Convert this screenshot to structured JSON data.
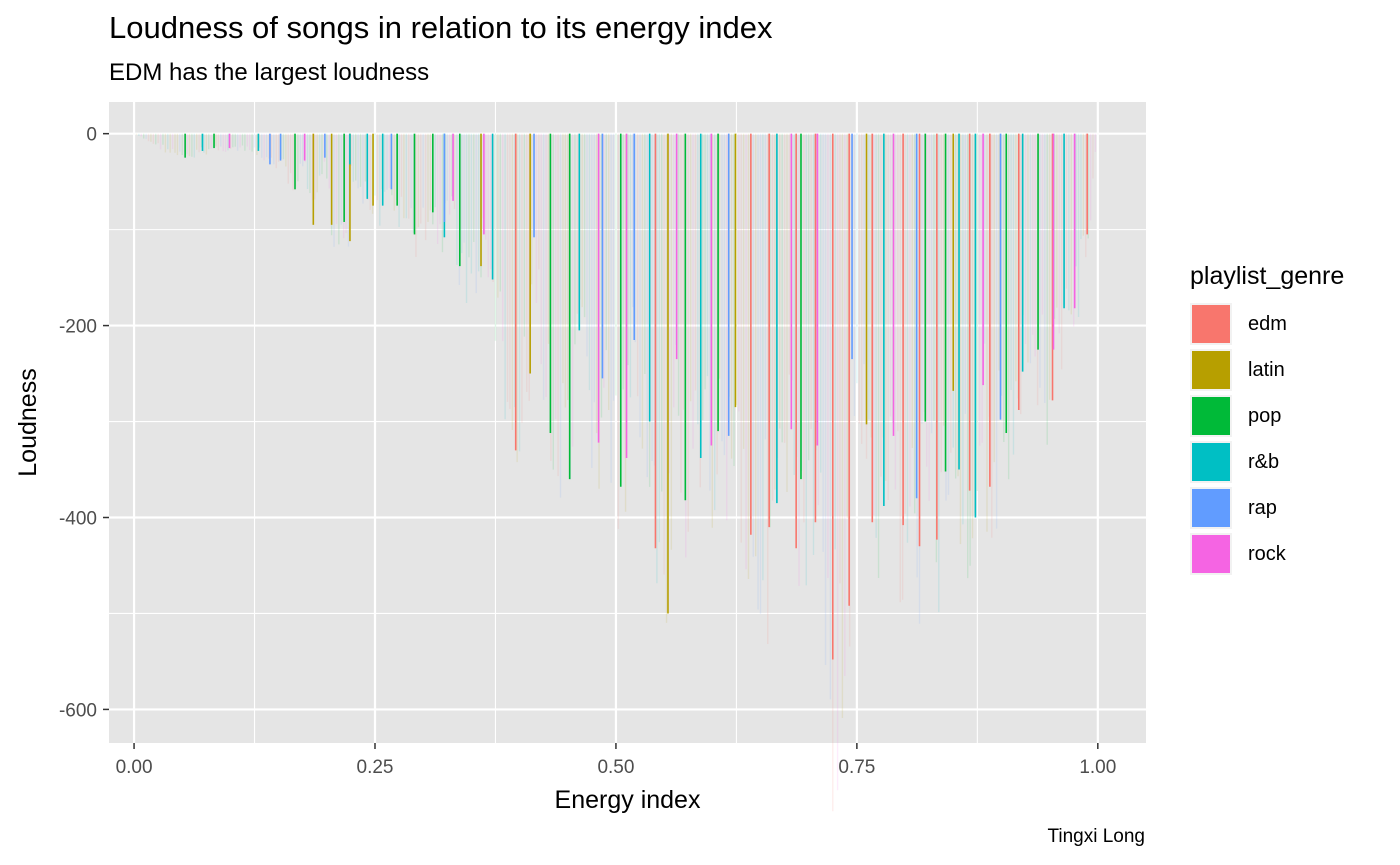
{
  "title": "Loudness of songs in relation to its energy index",
  "subtitle": "EDM has the largest loudness",
  "caption": "Tingxi Long",
  "colors": {
    "edm": "#F8766D",
    "latin": "#B79F00",
    "pop": "#00BA38",
    "r&b": "#00BFC4",
    "rap": "#619CFF",
    "rock": "#F564E3",
    "panel": "#E5E5E5",
    "grid": "#FFFFFF"
  },
  "legend": {
    "title": "playlist_genre",
    "items": [
      {
        "label": "edm",
        "color": "#F8766D"
      },
      {
        "label": "latin",
        "color": "#B79F00"
      },
      {
        "label": "pop",
        "color": "#00BA38"
      },
      {
        "label": "r&b",
        "color": "#00BFC4"
      },
      {
        "label": "rap",
        "color": "#619CFF"
      },
      {
        "label": "rock",
        "color": "#F564E3"
      }
    ]
  },
  "chart_data": {
    "type": "bar",
    "title": "Loudness of songs in relation to its energy index",
    "subtitle": "EDM has the largest loudness",
    "xlabel": "Energy index",
    "ylabel": "Loudness",
    "xlim": [
      -0.026,
      1.05
    ],
    "ylim": [
      -635,
      33
    ],
    "x_ticks": [
      0.0,
      0.25,
      0.5,
      0.75,
      1.0
    ],
    "x_tick_labels": [
      "0.00",
      "0.25",
      "0.50",
      "0.75",
      "1.00"
    ],
    "y_ticks": [
      0,
      -200,
      -400,
      -600
    ],
    "y_tick_labels": [
      "0",
      "-200",
      "-400",
      "-600"
    ],
    "grid": true,
    "legend_position": "right",
    "series": [
      {
        "name": "edm",
        "points": [
          [
            0.396,
            -330
          ],
          [
            0.541,
            -432
          ],
          [
            0.64,
            -418
          ],
          [
            0.659,
            -410
          ],
          [
            0.687,
            -432
          ],
          [
            0.707,
            -405
          ],
          [
            0.725,
            -548
          ],
          [
            0.742,
            -492
          ],
          [
            0.766,
            -405
          ],
          [
            0.798,
            -408
          ],
          [
            0.815,
            -430
          ],
          [
            0.833,
            -423
          ],
          [
            0.867,
            -372
          ],
          [
            0.888,
            -368
          ],
          [
            0.918,
            -288
          ],
          [
            0.953,
            -278
          ],
          [
            0.989,
            -105
          ]
        ]
      },
      {
        "name": "latin",
        "points": [
          [
            0.186,
            -95
          ],
          [
            0.205,
            -95
          ],
          [
            0.224,
            -112
          ],
          [
            0.248,
            -75
          ],
          [
            0.36,
            -138
          ],
          [
            0.411,
            -250
          ],
          [
            0.554,
            -500
          ],
          [
            0.624,
            -285
          ],
          [
            0.76,
            -303
          ],
          [
            0.85,
            -268
          ]
        ]
      },
      {
        "name": "pop",
        "points": [
          [
            0.053,
            -25
          ],
          [
            0.083,
            -15
          ],
          [
            0.167,
            -58
          ],
          [
            0.218,
            -92
          ],
          [
            0.273,
            -75
          ],
          [
            0.291,
            -105
          ],
          [
            0.31,
            -82
          ],
          [
            0.338,
            -138
          ],
          [
            0.432,
            -312
          ],
          [
            0.452,
            -360
          ],
          [
            0.505,
            -368
          ],
          [
            0.572,
            -382
          ],
          [
            0.606,
            -310
          ],
          [
            0.692,
            -360
          ],
          [
            0.821,
            -300
          ],
          [
            0.842,
            -352
          ],
          [
            0.905,
            -312
          ],
          [
            0.938,
            -225
          ]
        ]
      },
      {
        "name": "r&b",
        "points": [
          [
            0.071,
            -18
          ],
          [
            0.129,
            -18
          ],
          [
            0.224,
            -32
          ],
          [
            0.242,
            -68
          ],
          [
            0.258,
            -75
          ],
          [
            0.322,
            -108
          ],
          [
            0.372,
            -152
          ],
          [
            0.462,
            -205
          ],
          [
            0.535,
            -300
          ],
          [
            0.588,
            -338
          ],
          [
            0.667,
            -385
          ],
          [
            0.778,
            -388
          ],
          [
            0.856,
            -350
          ],
          [
            0.873,
            -400
          ],
          [
            0.922,
            -248
          ],
          [
            0.965,
            -182
          ]
        ]
      },
      {
        "name": "rap",
        "points": [
          [
            0.141,
            -32
          ],
          [
            0.152,
            -28
          ],
          [
            0.198,
            -25
          ],
          [
            0.267,
            -58
          ],
          [
            0.322,
            -92
          ],
          [
            0.415,
            -108
          ],
          [
            0.486,
            -255
          ],
          [
            0.519,
            -215
          ],
          [
            0.617,
            -315
          ],
          [
            0.745,
            -235
          ],
          [
            0.812,
            -380
          ],
          [
            0.899,
            -298
          ]
        ]
      },
      {
        "name": "rock",
        "points": [
          [
            0.099,
            -15
          ],
          [
            0.177,
            -28
          ],
          [
            0.331,
            -70
          ],
          [
            0.363,
            -105
          ],
          [
            0.482,
            -322
          ],
          [
            0.511,
            -338
          ],
          [
            0.563,
            -235
          ],
          [
            0.599,
            -325
          ],
          [
            0.682,
            -308
          ],
          [
            0.709,
            -325
          ],
          [
            0.788,
            -315
          ],
          [
            0.881,
            -262
          ],
          [
            0.954,
            -225
          ],
          [
            0.976,
            -182
          ]
        ]
      }
    ]
  }
}
